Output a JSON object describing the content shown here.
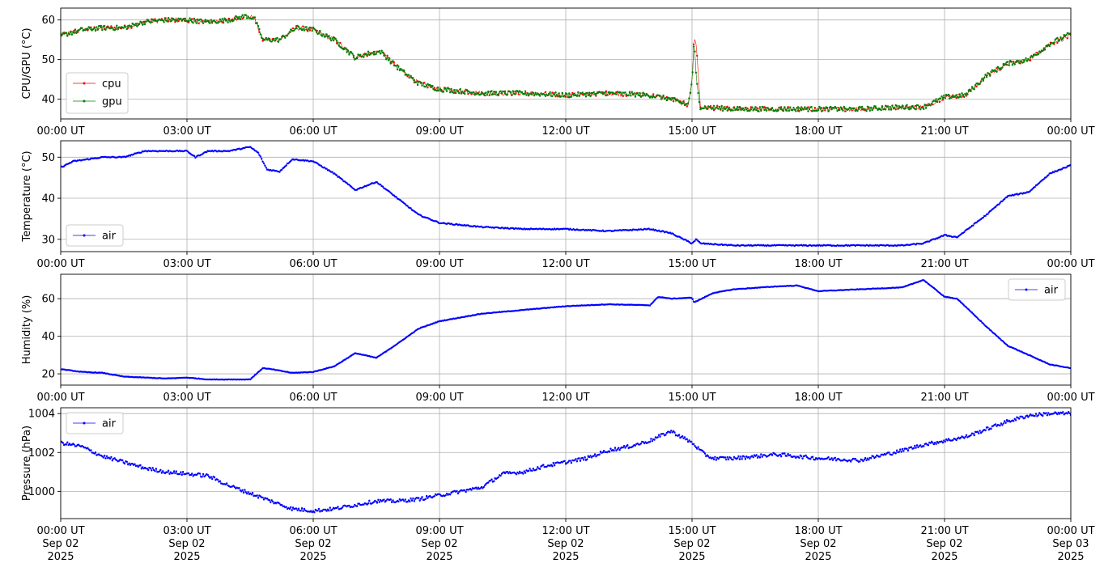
{
  "chart_data": [
    {
      "type": "line",
      "ylabel": "CPU/GPU (°C)",
      "ylim": [
        35,
        63
      ],
      "yticks": [
        40,
        50,
        60
      ],
      "x_range_hours": [
        0,
        24
      ],
      "xtick_labels": [
        "00:00 UT",
        "03:00 UT",
        "06:00 UT",
        "09:00 UT",
        "12:00 UT",
        "15:00 UT",
        "18:00 UT",
        "21:00 UT",
        "00:00 UT"
      ],
      "grid": true,
      "legend_loc": "lower-left",
      "series": [
        {
          "name": "cpu",
          "color": "#ff0000",
          "x": [
            0,
            0.5,
            1,
            1.5,
            2,
            2.5,
            3,
            3.5,
            4,
            4.4,
            4.6,
            4.8,
            5.2,
            5.6,
            6,
            6.5,
            7,
            7.3,
            7.6,
            8,
            8.5,
            9,
            10,
            11,
            12,
            13,
            14,
            14.5,
            14.9,
            15.0,
            15.05,
            15.1,
            15.2,
            16,
            17,
            18,
            19,
            20,
            20.5,
            21,
            21.5,
            22,
            22.5,
            23,
            23.5,
            24
          ],
          "y": [
            56,
            57.5,
            58,
            58,
            59.5,
            60,
            60,
            59.5,
            60,
            61,
            60.5,
            55,
            55,
            58,
            57.5,
            55,
            50.5,
            51.5,
            52,
            48,
            44,
            42.5,
            41.5,
            41.5,
            41,
            41.5,
            41,
            40,
            38.5,
            44,
            56,
            54,
            38,
            37.5,
            37.5,
            37.5,
            37.5,
            38,
            38,
            40.5,
            41,
            46,
            49,
            50,
            54,
            56
          ]
        },
        {
          "name": "gpu",
          "color": "#008000",
          "x": [
            0,
            0.5,
            1,
            1.5,
            2,
            2.5,
            3,
            3.5,
            4,
            4.4,
            4.6,
            4.8,
            5.2,
            5.6,
            6,
            6.5,
            7,
            7.3,
            7.6,
            8,
            8.5,
            9,
            10,
            11,
            12,
            13,
            14,
            14.5,
            14.9,
            15.0,
            15.05,
            15.1,
            15.2,
            16,
            17,
            18,
            19,
            20,
            20.5,
            21,
            21.5,
            22,
            22.5,
            23,
            23.5,
            24
          ],
          "y": [
            56,
            57.5,
            58,
            58,
            59.5,
            60,
            60,
            59.5,
            60,
            61,
            60.5,
            55,
            55,
            58,
            57.5,
            55,
            50.5,
            51.5,
            52,
            48,
            44,
            42.5,
            41.5,
            41.5,
            41,
            41.5,
            41,
            40,
            38.5,
            44,
            55,
            45,
            38,
            37.5,
            37.5,
            37.5,
            37.5,
            38,
            38,
            40.5,
            41,
            46,
            49,
            50,
            54,
            56.5
          ]
        }
      ]
    },
    {
      "type": "line",
      "ylabel": "Temperature (°C)",
      "ylim": [
        27,
        54
      ],
      "yticks": [
        30,
        40,
        50
      ],
      "x_range_hours": [
        0,
        24
      ],
      "xtick_labels": [
        "00:00 UT",
        "03:00 UT",
        "06:00 UT",
        "09:00 UT",
        "12:00 UT",
        "15:00 UT",
        "18:00 UT",
        "21:00 UT",
        "00:00 UT"
      ],
      "grid": true,
      "legend_loc": "lower-left",
      "series": [
        {
          "name": "air",
          "color": "#0000ff",
          "x": [
            0,
            0.3,
            1,
            1.5,
            2,
            2.5,
            3,
            3.2,
            3.5,
            4,
            4.5,
            4.7,
            4.9,
            5.2,
            5.5,
            6,
            6.5,
            7,
            7.5,
            8,
            8.5,
            9,
            10,
            11,
            12,
            13,
            14,
            14.5,
            15,
            15.1,
            15.2,
            16,
            17,
            18,
            19,
            20,
            20.5,
            21,
            21.3,
            22,
            22.5,
            23,
            23.5,
            24
          ],
          "y": [
            47.5,
            49,
            50,
            50,
            51.5,
            51.5,
            51.5,
            50,
            51.5,
            51.5,
            52.5,
            51,
            47,
            46.5,
            49.5,
            49,
            46,
            42,
            44,
            40,
            36,
            34,
            33,
            32.5,
            32.5,
            32,
            32.5,
            31.5,
            29,
            30,
            29,
            28.5,
            28.5,
            28.5,
            28.5,
            28.5,
            29,
            31,
            30.5,
            36,
            40.5,
            41.5,
            46,
            48
          ]
        }
      ]
    },
    {
      "type": "line",
      "ylabel": "Humidity (%)",
      "ylim": [
        14,
        73
      ],
      "yticks": [
        20,
        40,
        60
      ],
      "x_range_hours": [
        0,
        24
      ],
      "xtick_labels": [
        "00:00 UT",
        "03:00 UT",
        "06:00 UT",
        "09:00 UT",
        "12:00 UT",
        "15:00 UT",
        "18:00 UT",
        "21:00 UT",
        "00:00 UT"
      ],
      "grid": true,
      "legend_loc": "upper-right",
      "series": [
        {
          "name": "air",
          "color": "#0000ff",
          "x": [
            0,
            0.5,
            1,
            1.5,
            2,
            2.5,
            3,
            3.5,
            4,
            4.5,
            4.8,
            5,
            5.5,
            6,
            6.5,
            7,
            7.5,
            8,
            8.5,
            9,
            10,
            11,
            12,
            13,
            14,
            14.2,
            14.5,
            15,
            15.05,
            15.5,
            16,
            17,
            17.5,
            18,
            19,
            20,
            20.5,
            21,
            21.3,
            22,
            22.5,
            23,
            23.5,
            24
          ],
          "y": [
            22.5,
            21,
            20.5,
            18.5,
            18,
            17.5,
            18,
            17,
            17,
            17,
            23,
            22.5,
            20.5,
            21,
            24,
            31,
            28.5,
            36,
            44,
            48,
            52,
            54,
            56,
            57,
            56.5,
            61,
            60,
            60.5,
            58,
            63,
            65,
            66.5,
            67,
            64,
            65,
            66,
            70,
            61,
            60,
            45,
            35,
            30,
            25,
            23
          ]
        }
      ]
    },
    {
      "type": "line",
      "ylabel": "Pressure (hPa)",
      "ylim": [
        998.6,
        1004.3
      ],
      "yticks": [
        1000,
        1002,
        1004
      ],
      "x_range_hours": [
        0,
        24
      ],
      "xtick_labels": [
        "00:00 UT\nSep 02\n2025",
        "03:00 UT\nSep 02\n2025",
        "06:00 UT\nSep 02\n2025",
        "09:00 UT\nSep 02\n2025",
        "12:00 UT\nSep 02\n2025",
        "15:00 UT\nSep 02\n2025",
        "18:00 UT\nSep 02\n2025",
        "21:00 UT\nSep 02\n2025",
        "00:00 UT\nSep 03\n2025"
      ],
      "grid": true,
      "legend_loc": "upper-left",
      "series": [
        {
          "name": "air",
          "color": "#0000ff",
          "x": [
            0,
            0.5,
            1,
            1.5,
            2,
            2.5,
            3,
            3.5,
            4,
            4.5,
            5,
            5.5,
            6,
            6.5,
            7,
            7.5,
            8,
            8.5,
            9,
            9.5,
            10,
            10.5,
            11,
            11.5,
            12,
            12.5,
            13,
            13.5,
            14,
            14.5,
            15,
            15.3,
            15.5,
            16,
            17,
            18,
            19,
            20,
            20.5,
            21,
            21.5,
            22,
            22.5,
            23,
            23.5,
            24
          ],
          "y": [
            1002.5,
            1002.3,
            1001.8,
            1001.5,
            1001.2,
            1001,
            1000.9,
            1000.8,
            1000.3,
            999.9,
            999.5,
            999.1,
            999,
            999.1,
            999.3,
            999.5,
            999.5,
            999.6,
            999.8,
            1000,
            1000.2,
            1000.9,
            1001,
            1001.3,
            1001.5,
            1001.7,
            1002.1,
            1002.3,
            1002.6,
            1003.1,
            1002.5,
            1001.9,
            1001.7,
            1001.7,
            1001.9,
            1001.7,
            1001.6,
            1002.1,
            1002.4,
            1002.6,
            1002.8,
            1003.2,
            1003.6,
            1003.9,
            1004,
            1004
          ]
        }
      ]
    }
  ]
}
